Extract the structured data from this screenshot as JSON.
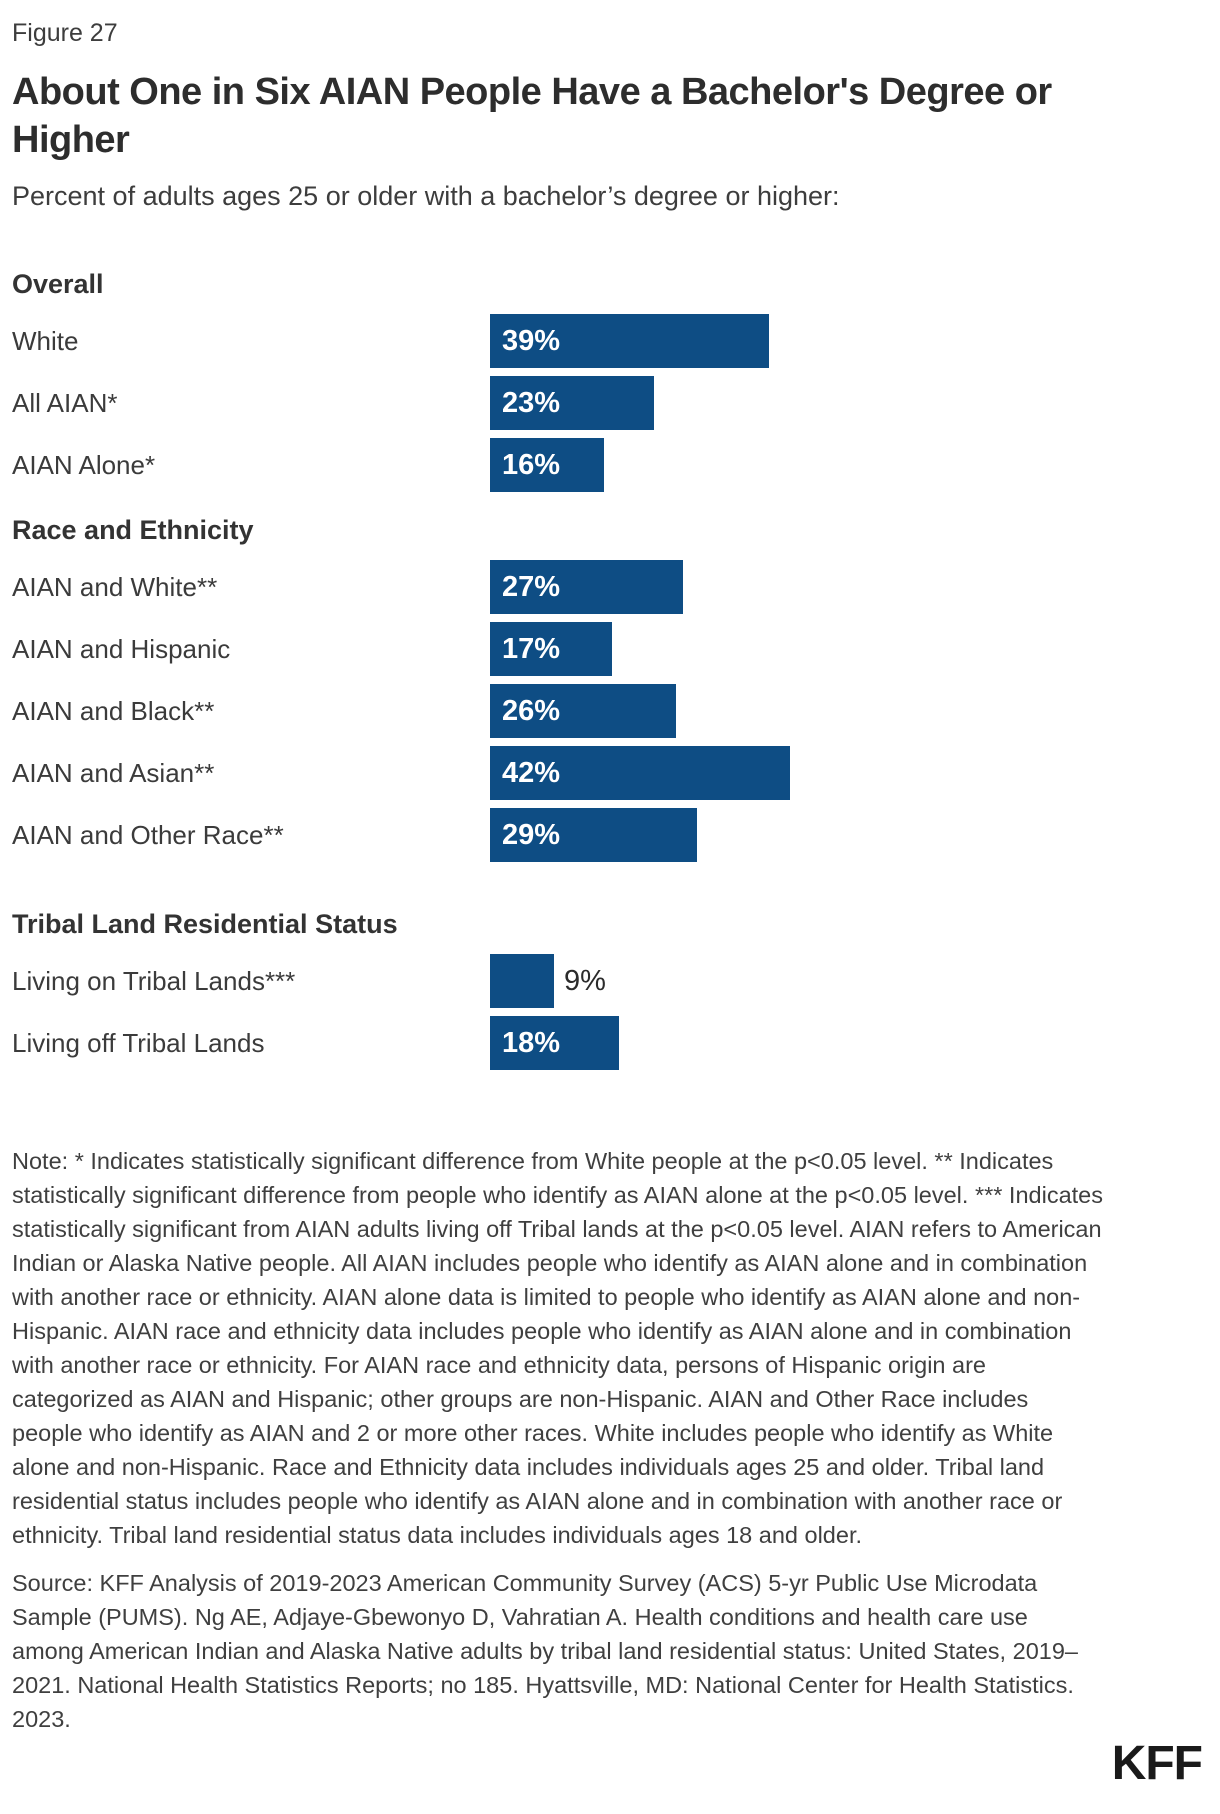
{
  "figure_label": "Figure 27",
  "title": "About One in Six AIAN People Have a Bachelor's Degree or Higher",
  "subtitle": "Percent of adults ages 25 or older with a bachelor’s degree or higher:",
  "chart_data": {
    "type": "bar",
    "orientation": "horizontal",
    "unit": "%",
    "xlim": [
      0,
      45
    ],
    "bar_color": "#0e4d84",
    "value_label_inside_color": "#ffffff",
    "grid": false,
    "legend": false,
    "groups": [
      {
        "header": "Overall",
        "rows": [
          {
            "label": "White",
            "value": 39,
            "value_label": "39%"
          },
          {
            "label": "All AIAN*",
            "value": 23,
            "value_label": "23%"
          },
          {
            "label": "AIAN Alone*",
            "value": 16,
            "value_label": "16%"
          }
        ]
      },
      {
        "header": "Race and Ethnicity",
        "rows": [
          {
            "label": "AIAN and White**",
            "value": 27,
            "value_label": "27%"
          },
          {
            "label": "AIAN and Hispanic",
            "value": 17,
            "value_label": "17%"
          },
          {
            "label": "AIAN and Black**",
            "value": 26,
            "value_label": "26%"
          },
          {
            "label": "AIAN and Asian**",
            "value": 42,
            "value_label": "42%"
          },
          {
            "label": "AIAN and Other Race**",
            "value": 29,
            "value_label": "29%"
          }
        ]
      },
      {
        "header": "Tribal Land Residential Status",
        "rows": [
          {
            "label": "Living on Tribal Lands***",
            "value": 9,
            "value_label": "9%",
            "label_position": "outside"
          },
          {
            "label": "Living off Tribal Lands",
            "value": 18,
            "value_label": "18%"
          }
        ]
      }
    ]
  },
  "note": "Note: * Indicates statistically significant difference from White people at the p<0.05 level. ** Indicates statistically significant difference from people who identify as AIAN alone at the p<0.05 level. *** Indicates statistically significant from AIAN adults living off Tribal lands at the p<0.05 level. AIAN refers to American Indian or Alaska Native people. All AIAN includes people who identify as AIAN alone and in combination with another race or ethnicity. AIAN alone data is limited to people who identify as AIAN alone and non-Hispanic. AIAN race and ethnicity data includes people who identify as AIAN alone and in combination with another race or ethnicity. For AIAN race and ethnicity data, persons of Hispanic origin are categorized as AIAN and Hispanic; other groups are non-Hispanic. AIAN and Other Race includes people who identify as AIAN and 2 or more other races. White includes people who identify as White alone and non-Hispanic. Race and Ethnicity data includes individuals ages 25 and older. Tribal land residential status includes people who identify as AIAN alone and in combination with another race or ethnicity. Tribal land residential status data includes individuals ages 18 and older.",
  "source": "Source: KFF Analysis of 2019-2023 American Community Survey (ACS) 5-yr Public Use Microdata Sample (PUMS). Ng AE, Adjaye-Gbewonyo D, Vahratian A. Health conditions and health care use among American Indian and Alaska Native adults by tribal land residential status: United States, 2019–2021. National Health Statistics Reports; no 185. Hyattsville, MD: National Center for Health Statistics. 2023.",
  "logo_text": "KFF"
}
